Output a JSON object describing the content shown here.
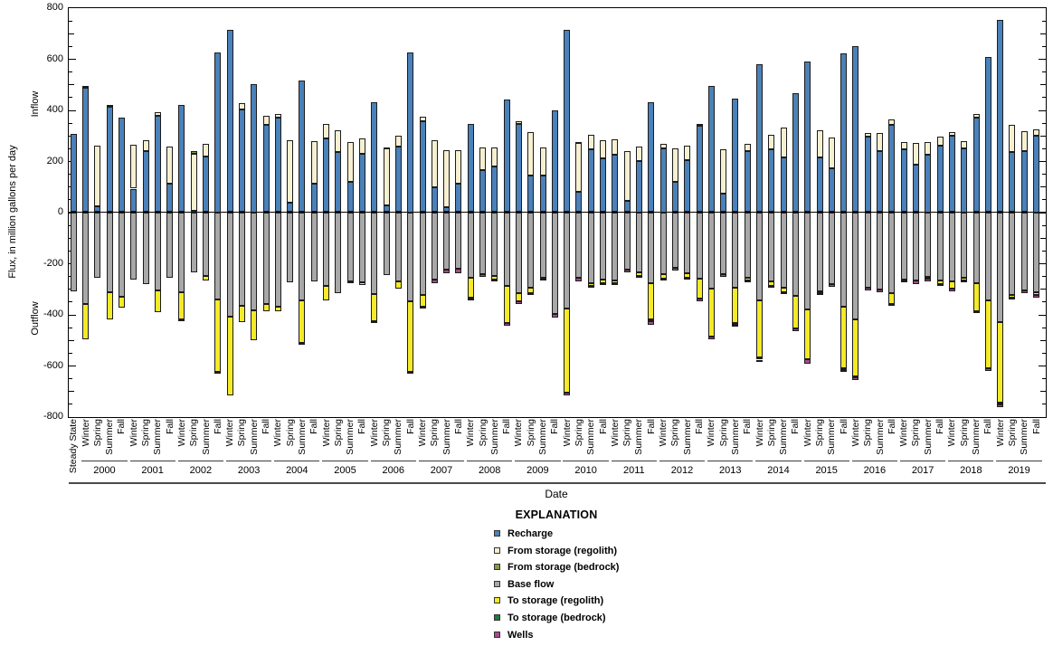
{
  "chart_data": {
    "type": "bar",
    "stacked": true,
    "title": "",
    "xlabel": "Date",
    "ylabel": "Flux, in million gallons per day",
    "inflow_label": "Inflow",
    "outflow_label": "Outflow",
    "legend_title": "EXPLANATION",
    "ylim": [
      -800,
      800
    ],
    "y_major_tick": 200,
    "y_minor_tick": 50,
    "grid": "off",
    "legend_position": "below-center",
    "y_tick_labels": [
      "800",
      "600",
      "400",
      "200",
      "0",
      "-200",
      "-400",
      "-600",
      "-800"
    ],
    "series": [
      {
        "name": "Recharge",
        "color": "#4a81ba",
        "direction": "positive"
      },
      {
        "name": "From storage (regolith)",
        "color": "#f6f0d1",
        "direction": "positive"
      },
      {
        "name": "From storage (bedrock)",
        "color": "#849b40",
        "direction": "positive"
      },
      {
        "name": "Base flow",
        "color": "#a8a8a8",
        "direction": "negative"
      },
      {
        "name": "To storage (regolith)",
        "color": "#f4ea27",
        "direction": "negative"
      },
      {
        "name": "To storage (bedrock)",
        "color": "#1d7d3f",
        "direction": "negative"
      },
      {
        "name": "Wells",
        "color": "#a64a8b",
        "direction": "negative"
      }
    ],
    "categories": [
      {
        "year": "",
        "season": "Steady State"
      },
      {
        "year": "2000",
        "season": "Winter"
      },
      {
        "year": "2000",
        "season": "Spring"
      },
      {
        "year": "2000",
        "season": "Summer"
      },
      {
        "year": "2000",
        "season": "Fall"
      },
      {
        "year": "2001",
        "season": "Winter"
      },
      {
        "year": "2001",
        "season": "Spring"
      },
      {
        "year": "2001",
        "season": "Summer"
      },
      {
        "year": "2001",
        "season": "Fall"
      },
      {
        "year": "2002",
        "season": "Winter"
      },
      {
        "year": "2002",
        "season": "Spring"
      },
      {
        "year": "2002",
        "season": "Summer"
      },
      {
        "year": "2002",
        "season": "Fall"
      },
      {
        "year": "2003",
        "season": "Winter"
      },
      {
        "year": "2003",
        "season": "Spring"
      },
      {
        "year": "2003",
        "season": "Summer"
      },
      {
        "year": "2003",
        "season": "Fall"
      },
      {
        "year": "2004",
        "season": "Winter"
      },
      {
        "year": "2004",
        "season": "Spring"
      },
      {
        "year": "2004",
        "season": "Summer"
      },
      {
        "year": "2004",
        "season": "Fall"
      },
      {
        "year": "2005",
        "season": "Winter"
      },
      {
        "year": "2005",
        "season": "Spring"
      },
      {
        "year": "2005",
        "season": "Summer"
      },
      {
        "year": "2005",
        "season": "Fall"
      },
      {
        "year": "2006",
        "season": "Winter"
      },
      {
        "year": "2006",
        "season": "Spring"
      },
      {
        "year": "2006",
        "season": "Summer"
      },
      {
        "year": "2006",
        "season": "Fall"
      },
      {
        "year": "2007",
        "season": "Winter"
      },
      {
        "year": "2007",
        "season": "Spring"
      },
      {
        "year": "2007",
        "season": "Summer"
      },
      {
        "year": "2007",
        "season": "Fall"
      },
      {
        "year": "2008",
        "season": "Winter"
      },
      {
        "year": "2008",
        "season": "Spring"
      },
      {
        "year": "2008",
        "season": "Summer"
      },
      {
        "year": "2008",
        "season": "Fall"
      },
      {
        "year": "2009",
        "season": "Winter"
      },
      {
        "year": "2009",
        "season": "Spring"
      },
      {
        "year": "2009",
        "season": "Summer"
      },
      {
        "year": "2009",
        "season": "Fall"
      },
      {
        "year": "2010",
        "season": "Winter"
      },
      {
        "year": "2010",
        "season": "Spring"
      },
      {
        "year": "2010",
        "season": "Summer"
      },
      {
        "year": "2010",
        "season": "Fall"
      },
      {
        "year": "2011",
        "season": "Winter"
      },
      {
        "year": "2011",
        "season": "Spring"
      },
      {
        "year": "2011",
        "season": "Summer"
      },
      {
        "year": "2011",
        "season": "Fall"
      },
      {
        "year": "2012",
        "season": "Winter"
      },
      {
        "year": "2012",
        "season": "Spring"
      },
      {
        "year": "2012",
        "season": "Summer"
      },
      {
        "year": "2012",
        "season": "Fall"
      },
      {
        "year": "2013",
        "season": "Winter"
      },
      {
        "year": "2013",
        "season": "Spring"
      },
      {
        "year": "2013",
        "season": "Summer"
      },
      {
        "year": "2013",
        "season": "Fall"
      },
      {
        "year": "2014",
        "season": "Winter"
      },
      {
        "year": "2014",
        "season": "Spring"
      },
      {
        "year": "2014",
        "season": "Summer"
      },
      {
        "year": "2014",
        "season": "Fall"
      },
      {
        "year": "2015",
        "season": "Winter"
      },
      {
        "year": "2015",
        "season": "Spring"
      },
      {
        "year": "2015",
        "season": "Summer"
      },
      {
        "year": "2015",
        "season": "Fall"
      },
      {
        "year": "2016",
        "season": "Winter"
      },
      {
        "year": "2016",
        "season": "Spring"
      },
      {
        "year": "2016",
        "season": "Summer"
      },
      {
        "year": "2016",
        "season": "Fall"
      },
      {
        "year": "2017",
        "season": "Winter"
      },
      {
        "year": "2017",
        "season": "Spring"
      },
      {
        "year": "2017",
        "season": "Summer"
      },
      {
        "year": "2017",
        "season": "Fall"
      },
      {
        "year": "2018",
        "season": "Winter"
      },
      {
        "year": "2018",
        "season": "Spring"
      },
      {
        "year": "2018",
        "season": "Summer"
      },
      {
        "year": "2018",
        "season": "Fall"
      },
      {
        "year": "2019",
        "season": "Winter"
      },
      {
        "year": "2019",
        "season": "Spring"
      },
      {
        "year": "2019",
        "season": "Summer"
      },
      {
        "year": "2019",
        "season": "Fall"
      }
    ],
    "values_order": [
      "Recharge",
      "From storage (regolith)",
      "From storage (bedrock)",
      "Base flow",
      "To storage (regolith)",
      "To storage (bedrock)",
      "Wells"
    ],
    "values": [
      [
        307,
        0,
        0,
        -309,
        0,
        0,
        0
      ],
      [
        488,
        5,
        0,
        -360,
        -137,
        0,
        0
      ],
      [
        22,
        238,
        0,
        -257,
        0,
        0,
        0
      ],
      [
        413,
        5,
        0,
        -313,
        -106,
        0,
        0
      ],
      [
        370,
        0,
        0,
        -330,
        -44,
        0,
        0
      ],
      [
        92,
        173,
        0,
        -263,
        0,
        0,
        0
      ],
      [
        240,
        42,
        0,
        -280,
        0,
        0,
        0
      ],
      [
        378,
        12,
        0,
        -307,
        -83,
        0,
        0
      ],
      [
        112,
        146,
        0,
        -257,
        0,
        0,
        0
      ],
      [
        418,
        0,
        0,
        -312,
        -108,
        -4,
        0
      ],
      [
        5,
        225,
        8,
        -237,
        0,
        0,
        0
      ],
      [
        218,
        49,
        0,
        -250,
        -16,
        0,
        0
      ],
      [
        625,
        0,
        0,
        -340,
        -285,
        -7,
        0
      ],
      [
        715,
        0,
        0,
        -408,
        -310,
        0,
        0
      ],
      [
        403,
        25,
        0,
        -368,
        -62,
        0,
        0
      ],
      [
        500,
        0,
        0,
        -385,
        -117,
        0,
        0
      ],
      [
        343,
        35,
        0,
        -360,
        -28,
        0,
        0
      ],
      [
        370,
        15,
        0,
        -370,
        -16,
        0,
        0
      ],
      [
        37,
        244,
        0,
        -274,
        0,
        0,
        0
      ],
      [
        515,
        0,
        0,
        -345,
        -165,
        -7,
        0
      ],
      [
        112,
        166,
        0,
        -272,
        0,
        0,
        0
      ],
      [
        290,
        55,
        0,
        -290,
        -55,
        0,
        0
      ],
      [
        235,
        85,
        0,
        -318,
        0,
        0,
        0
      ],
      [
        118,
        158,
        0,
        -270,
        -6,
        0,
        0
      ],
      [
        227,
        62,
        0,
        -275,
        -10,
        0,
        0
      ],
      [
        430,
        0,
        0,
        -320,
        -105,
        -8,
        0
      ],
      [
        26,
        222,
        4,
        -245,
        0,
        0,
        0
      ],
      [
        256,
        44,
        0,
        -270,
        -30,
        0,
        0
      ],
      [
        625,
        0,
        0,
        -350,
        -275,
        -7,
        0
      ],
      [
        355,
        17,
        0,
        -325,
        -44,
        0,
        -9
      ],
      [
        97,
        186,
        0,
        -263,
        0,
        0,
        -14
      ],
      [
        20,
        224,
        0,
        -225,
        0,
        0,
        -15
      ],
      [
        111,
        130,
        0,
        -222,
        0,
        0,
        -16
      ],
      [
        345,
        0,
        0,
        -257,
        -77,
        -5,
        -6
      ],
      [
        164,
        88,
        0,
        -242,
        0,
        0,
        -12
      ],
      [
        180,
        72,
        0,
        -251,
        -12,
        0,
        -4
      ],
      [
        441,
        0,
        0,
        -287,
        -147,
        0,
        -12
      ],
      [
        344,
        11,
        0,
        -316,
        -33,
        0,
        -9
      ],
      [
        144,
        171,
        0,
        -295,
        -21,
        0,
        -9
      ],
      [
        142,
        110,
        0,
        -255,
        -6,
        0,
        -7
      ],
      [
        398,
        0,
        0,
        -399,
        0,
        0,
        -12
      ],
      [
        715,
        0,
        0,
        -378,
        -328,
        0,
        -12
      ],
      [
        80,
        190,
        6,
        -258,
        0,
        0,
        -14
      ],
      [
        245,
        58,
        0,
        -277,
        -12,
        0,
        -7
      ],
      [
        210,
        72,
        0,
        -263,
        -14,
        0,
        -6
      ],
      [
        226,
        59,
        0,
        -267,
        -10,
        0,
        -8
      ],
      [
        45,
        195,
        0,
        -225,
        0,
        0,
        -12
      ],
      [
        200,
        56,
        0,
        -235,
        -13,
        0,
        -8
      ],
      [
        430,
        0,
        0,
        -279,
        -141,
        -7,
        -13
      ],
      [
        250,
        18,
        0,
        -243,
        -17,
        0,
        -9
      ],
      [
        118,
        132,
        0,
        -218,
        0,
        0,
        -12
      ],
      [
        205,
        55,
        0,
        -240,
        -15,
        0,
        -9
      ],
      [
        338,
        6,
        0,
        -260,
        -77,
        0,
        -11
      ],
      [
        495,
        0,
        0,
        -300,
        -188,
        0,
        -11
      ],
      [
        73,
        173,
        0,
        -242,
        0,
        0,
        -11
      ],
      [
        445,
        0,
        0,
        -296,
        -138,
        -7,
        -7
      ],
      [
        240,
        26,
        0,
        -255,
        -11,
        0,
        -8
      ],
      [
        578,
        0,
        0,
        -346,
        -222,
        -9,
        -7
      ],
      [
        245,
        58,
        0,
        -272,
        -16,
        0,
        -9
      ],
      [
        215,
        115,
        0,
        -295,
        -20,
        0,
        -7
      ],
      [
        466,
        0,
        0,
        -328,
        -126,
        0,
        -12
      ],
      [
        588,
        0,
        0,
        -381,
        -195,
        0,
        -16
      ],
      [
        215,
        107,
        0,
        -308,
        -10,
        0,
        -7
      ],
      [
        170,
        122,
        0,
        -280,
        0,
        0,
        -12
      ],
      [
        620,
        0,
        0,
        -369,
        -240,
        -8,
        -9
      ],
      [
        648,
        0,
        0,
        -420,
        -221,
        -6,
        -8
      ],
      [
        295,
        15,
        0,
        -296,
        0,
        0,
        -12
      ],
      [
        240,
        68,
        0,
        -301,
        0,
        0,
        -13
      ],
      [
        340,
        22,
        0,
        -316,
        -42,
        0,
        -8
      ],
      [
        245,
        28,
        0,
        -262,
        0,
        -6,
        -8
      ],
      [
        185,
        87,
        0,
        -268,
        0,
        0,
        -12
      ],
      [
        225,
        50,
        0,
        -253,
        -8,
        0,
        -9
      ],
      [
        260,
        34,
        0,
        -267,
        -15,
        0,
        -8
      ],
      [
        298,
        14,
        0,
        -272,
        -26,
        0,
        -12
      ],
      [
        250,
        28,
        0,
        -255,
        -13,
        0,
        -8
      ],
      [
        370,
        15,
        0,
        -278,
        -110,
        0,
        -8
      ],
      [
        608,
        0,
        0,
        -345,
        -265,
        0,
        -11
      ],
      [
        752,
        0,
        0,
        -430,
        -315,
        -7,
        -10
      ],
      [
        235,
        105,
        0,
        -325,
        -8,
        0,
        -8
      ],
      [
        240,
        78,
        0,
        -307,
        0,
        0,
        -10
      ],
      [
        300,
        25,
        0,
        -313,
        -12,
        0,
        -8
      ]
    ],
    "legend": [
      {
        "label": "Recharge",
        "color": "#4a81ba"
      },
      {
        "label": "From storage (regolith)",
        "color": "#f6f0d1"
      },
      {
        "label": "From storage (bedrock)",
        "color": "#849b40"
      },
      {
        "label": "Base flow",
        "color": "#a8a8a8"
      },
      {
        "label": "To storage (regolith)",
        "color": "#f4ea27"
      },
      {
        "label": "To storage (bedrock)",
        "color": "#1d7d3f"
      },
      {
        "label": "Wells",
        "color": "#a64a8b"
      }
    ]
  }
}
